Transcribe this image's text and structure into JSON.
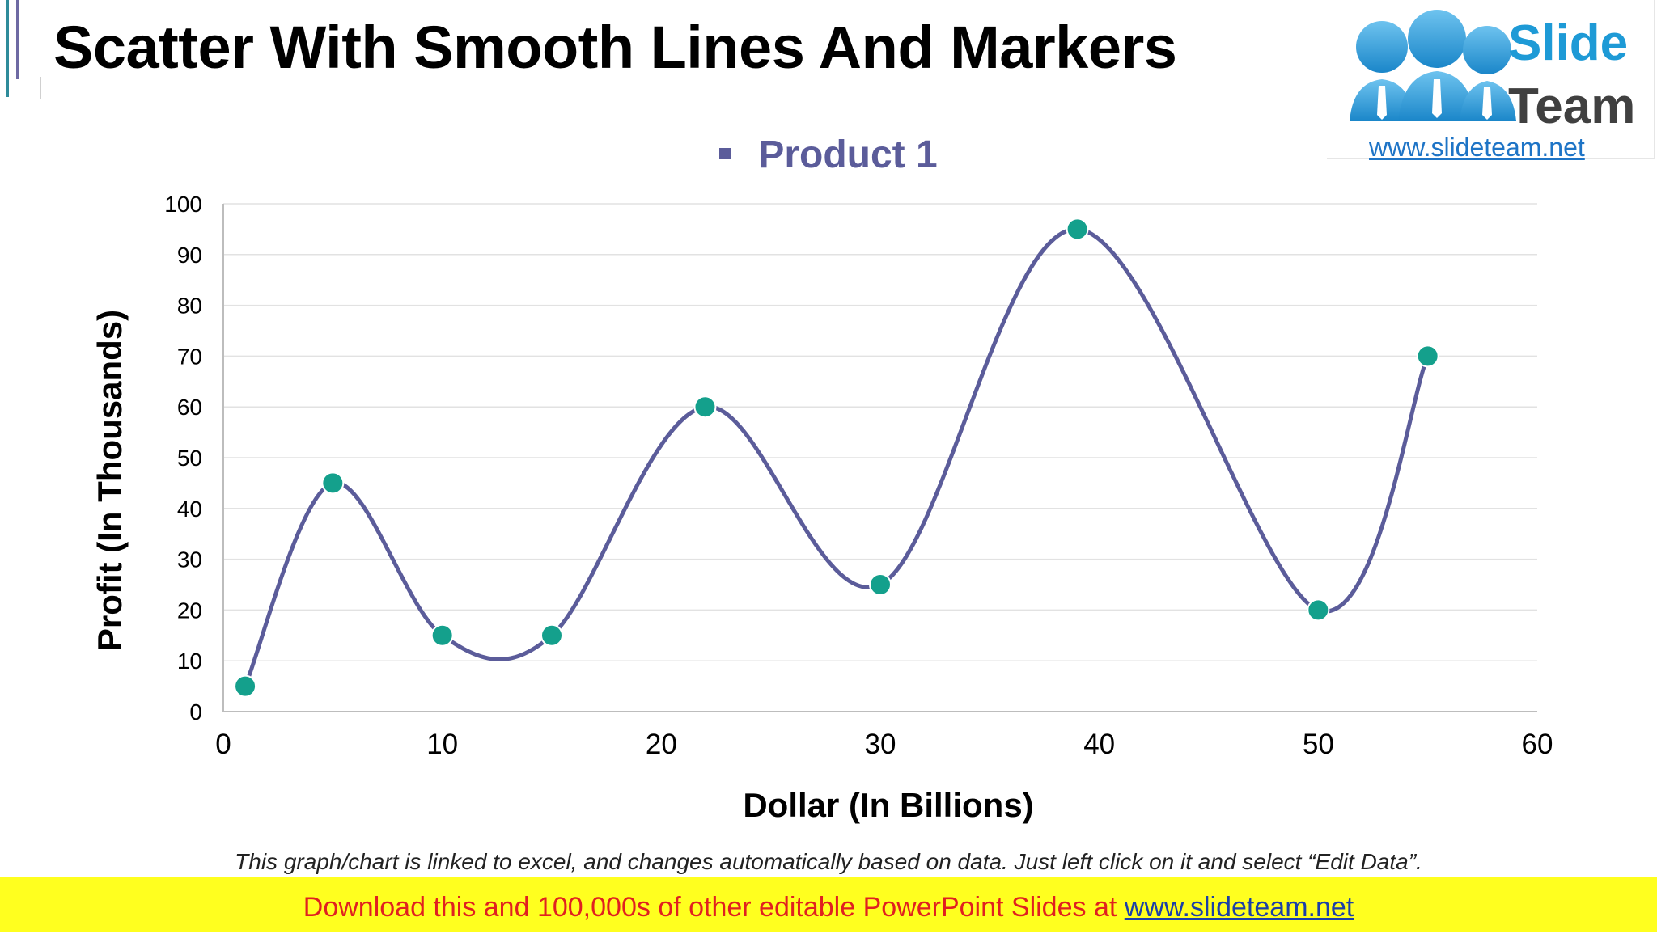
{
  "slide": {
    "title": "Scatter With Smooth Lines And Markers",
    "note": "This graph/chart is linked to excel, and changes automatically based on data. Just left click on it and select “Edit Data”.",
    "banner_text": "Download this and 100,000s of other editable PowerPoint Slides at ",
    "banner_link": "www.slideteam.net"
  },
  "logo": {
    "word1": "Slide",
    "word2": "Team",
    "url": "www.slideteam.net",
    "icon": "people-group-icon"
  },
  "colors": {
    "line": "#5b5c9a",
    "marker": "#14a08c",
    "grid": "#e2e2e2",
    "banner_bg": "#ffff1f",
    "banner_text": "#e02020"
  },
  "chart_data": {
    "type": "scatter",
    "title": "",
    "xlabel": "Dollar (In Billions)",
    "ylabel": "Profit  (In Thousands)",
    "xlim": [
      0,
      60
    ],
    "ylim": [
      0,
      100
    ],
    "x_ticks": [
      0,
      10,
      20,
      30,
      40,
      50,
      60
    ],
    "y_ticks": [
      0,
      10,
      20,
      30,
      40,
      50,
      60,
      70,
      80,
      90,
      100
    ],
    "grid": true,
    "legend_position": "top-center",
    "series": [
      {
        "name": "Product 1",
        "smooth": true,
        "markers": true,
        "points": [
          {
            "x": 1,
            "y": 5
          },
          {
            "x": 5,
            "y": 45
          },
          {
            "x": 10,
            "y": 15
          },
          {
            "x": 15,
            "y": 15
          },
          {
            "x": 22,
            "y": 60
          },
          {
            "x": 30,
            "y": 25
          },
          {
            "x": 39,
            "y": 95
          },
          {
            "x": 50,
            "y": 20
          },
          {
            "x": 55,
            "y": 70
          }
        ]
      }
    ]
  }
}
